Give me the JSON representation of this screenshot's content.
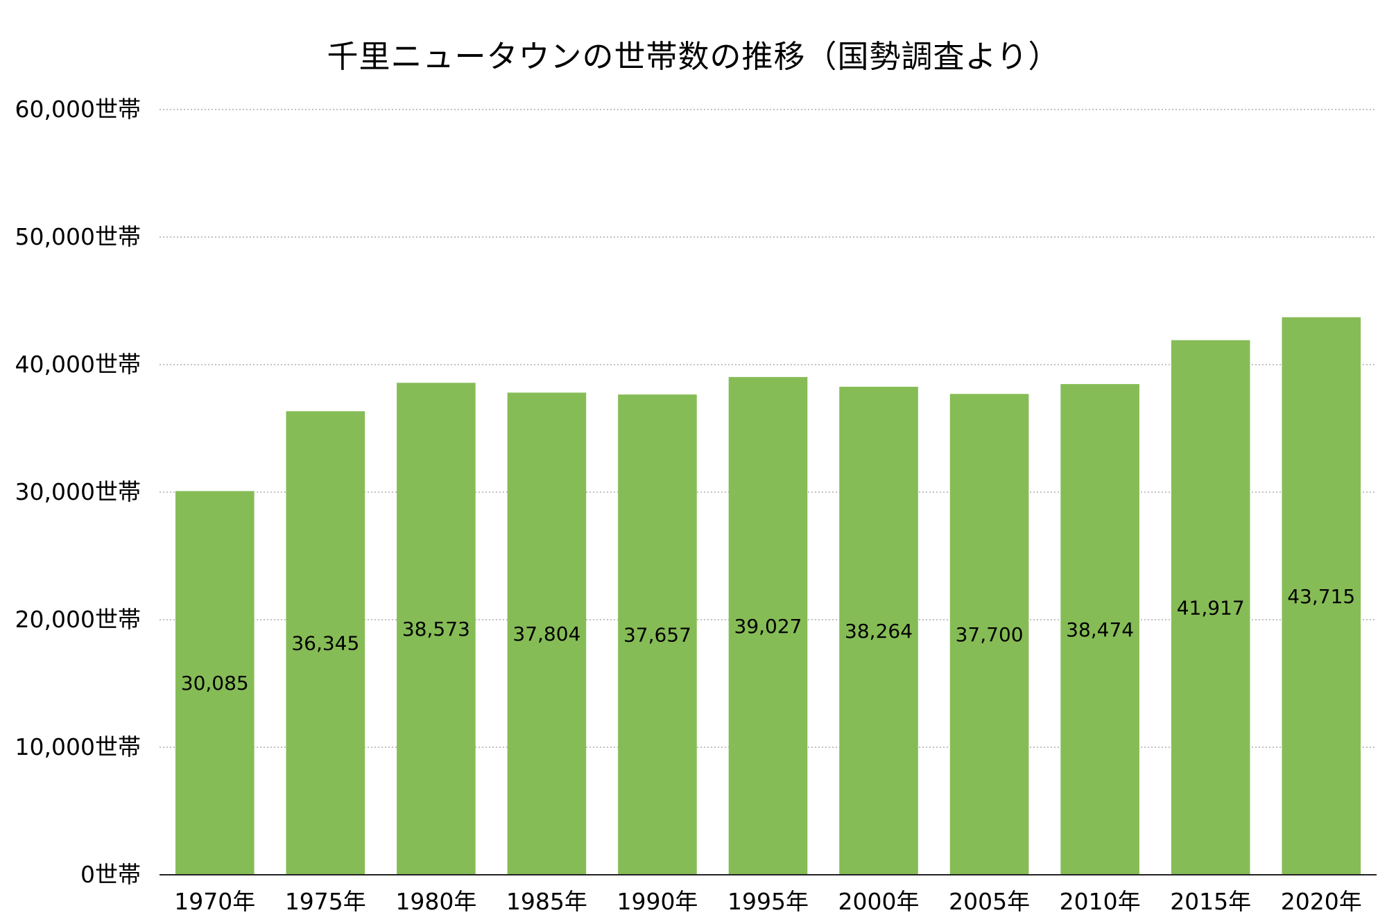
{
  "chart_data": {
    "type": "bar",
    "title": "千里ニュータウンの世帯数の推移（国勢調査より）",
    "xlabel": "",
    "ylabel": "",
    "categories": [
      "1970年",
      "1975年",
      "1980年",
      "1985年",
      "1990年",
      "1995年",
      "2000年",
      "2005年",
      "2010年",
      "2015年",
      "2020年"
    ],
    "values": [
      30085,
      36345,
      38573,
      37804,
      37657,
      39027,
      38264,
      37700,
      38474,
      41917,
      43715
    ],
    "data_labels": [
      "30,085",
      "36,345",
      "38,573",
      "37,804",
      "37,657",
      "39,027",
      "38,264",
      "37,700",
      "38,474",
      "41,917",
      "43,715"
    ],
    "ylim": [
      0,
      60000
    ],
    "yticks": [
      0,
      10000,
      20000,
      30000,
      40000,
      50000,
      60000
    ],
    "ytick_labels": [
      "0世帯",
      "10,000世帯",
      "20,000世帯",
      "30,000世帯",
      "40,000世帯",
      "50,000世帯",
      "60,000世帯"
    ],
    "grid": true,
    "legend": "none",
    "bar_color": "#86BC56"
  }
}
